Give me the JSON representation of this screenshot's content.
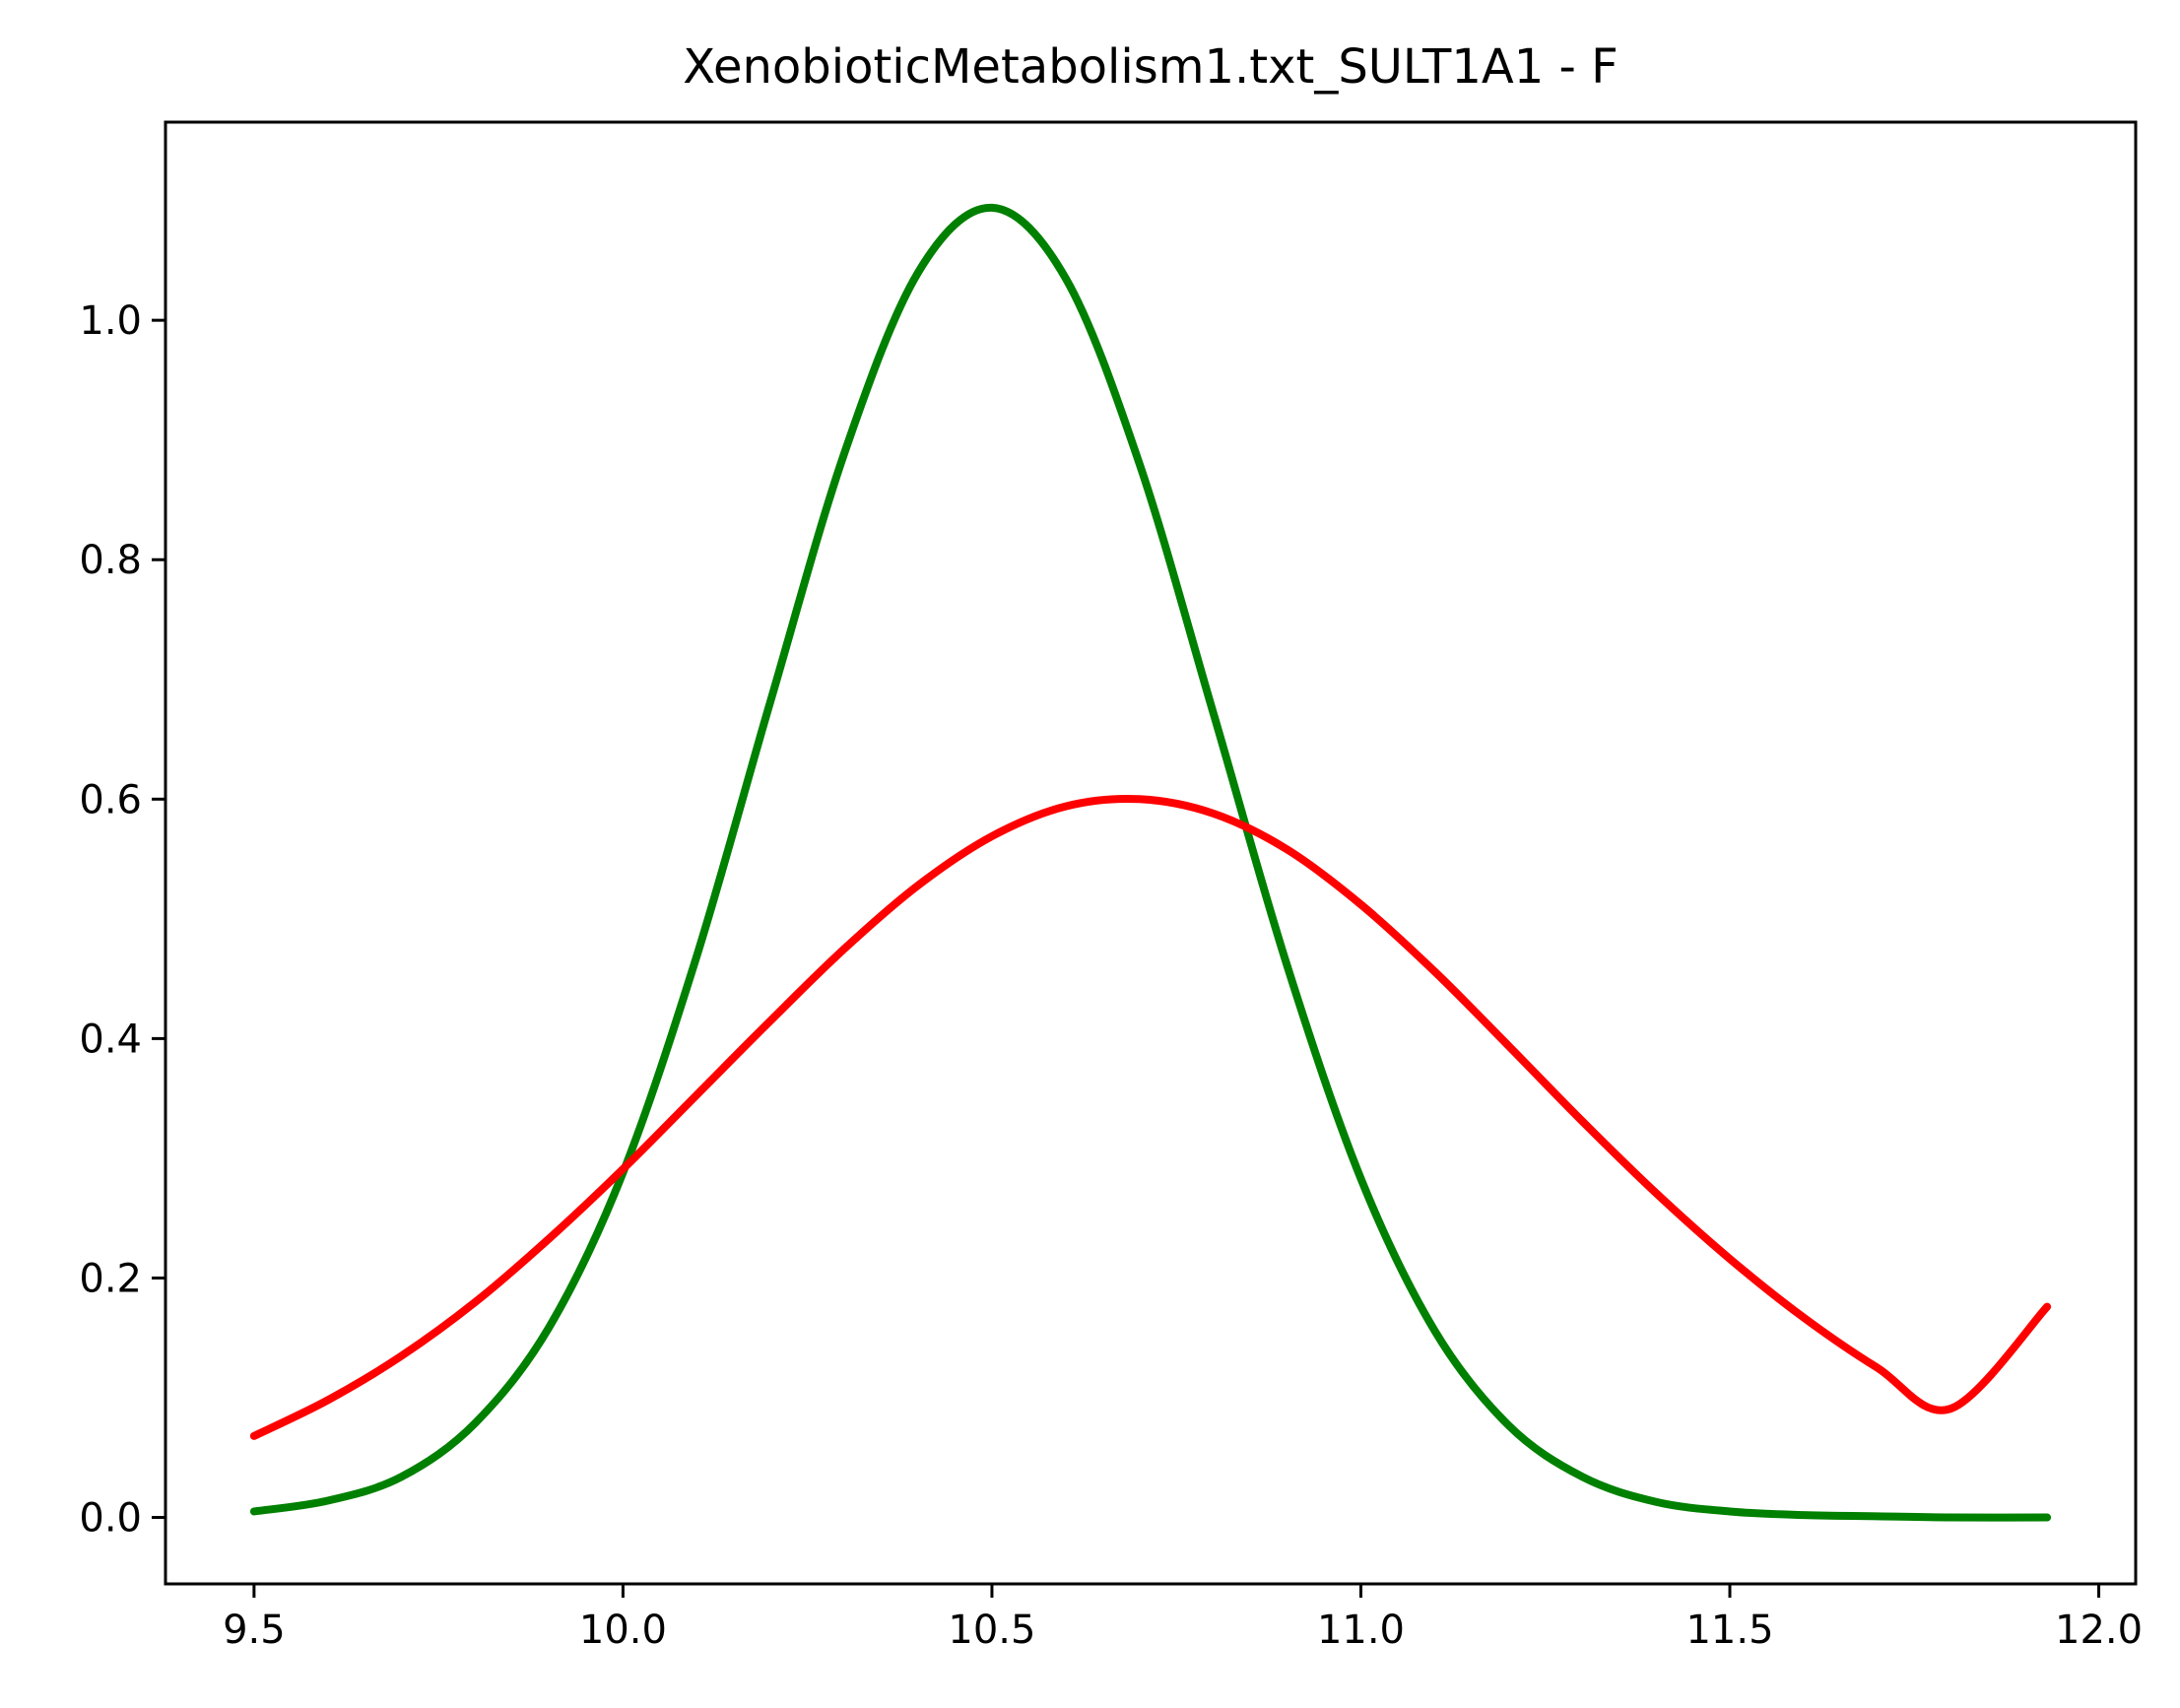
{
  "chart_data": {
    "type": "line",
    "title": "XenobioticMetabolism1.txt_SULT1A1 - F",
    "xlabel": "",
    "ylabel": "",
    "xlim": [
      9.38,
      12.05
    ],
    "ylim": [
      -0.0555,
      1.1655
    ],
    "x_ticks": [
      9.5,
      10.0,
      10.5,
      11.0,
      11.5,
      12.0
    ],
    "x_tick_labels": [
      "9.5",
      "10.0",
      "10.5",
      "11.0",
      "11.5",
      "12.0"
    ],
    "y_ticks": [
      0.0,
      0.2,
      0.4,
      0.6,
      0.8,
      1.0
    ],
    "y_tick_labels": [
      "0.0",
      "0.2",
      "0.4",
      "0.6",
      "0.8",
      "1.0"
    ],
    "grid": false,
    "legend": "none",
    "series": [
      {
        "color": "#008000",
        "x": [
          9.5,
          9.6,
          9.7,
          9.8,
          9.9,
          10.0,
          10.1,
          10.2,
          10.3,
          10.4,
          10.5,
          10.6,
          10.7,
          10.8,
          10.9,
          11.0,
          11.1,
          11.2,
          11.3,
          11.4,
          11.5,
          11.6,
          11.7,
          11.8,
          11.93
        ],
        "y": [
          0.005,
          0.014,
          0.034,
          0.079,
          0.159,
          0.288,
          0.469,
          0.682,
          0.889,
          1.04,
          1.094,
          1.035,
          0.88,
          0.672,
          0.461,
          0.283,
          0.156,
          0.077,
          0.034,
          0.013,
          0.005,
          0.002,
          0.001,
          0.0,
          0.0
        ]
      },
      {
        "color": "#ff0000",
        "x": [
          9.5,
          9.6,
          9.7,
          9.8,
          9.9,
          10.0,
          10.1,
          10.2,
          10.3,
          10.4,
          10.5,
          10.6,
          10.7,
          10.8,
          10.9,
          11.0,
          11.1,
          11.2,
          11.3,
          11.4,
          11.5,
          11.6,
          11.7,
          11.8,
          11.93
        ],
        "y": [
          0.068,
          0.098,
          0.135,
          0.18,
          0.233,
          0.291,
          0.353,
          0.415,
          0.475,
          0.528,
          0.569,
          0.594,
          0.6,
          0.588,
          0.558,
          0.512,
          0.456,
          0.394,
          0.331,
          0.271,
          0.216,
          0.167,
          0.125,
          0.091,
          0.176
        ]
      }
    ]
  }
}
